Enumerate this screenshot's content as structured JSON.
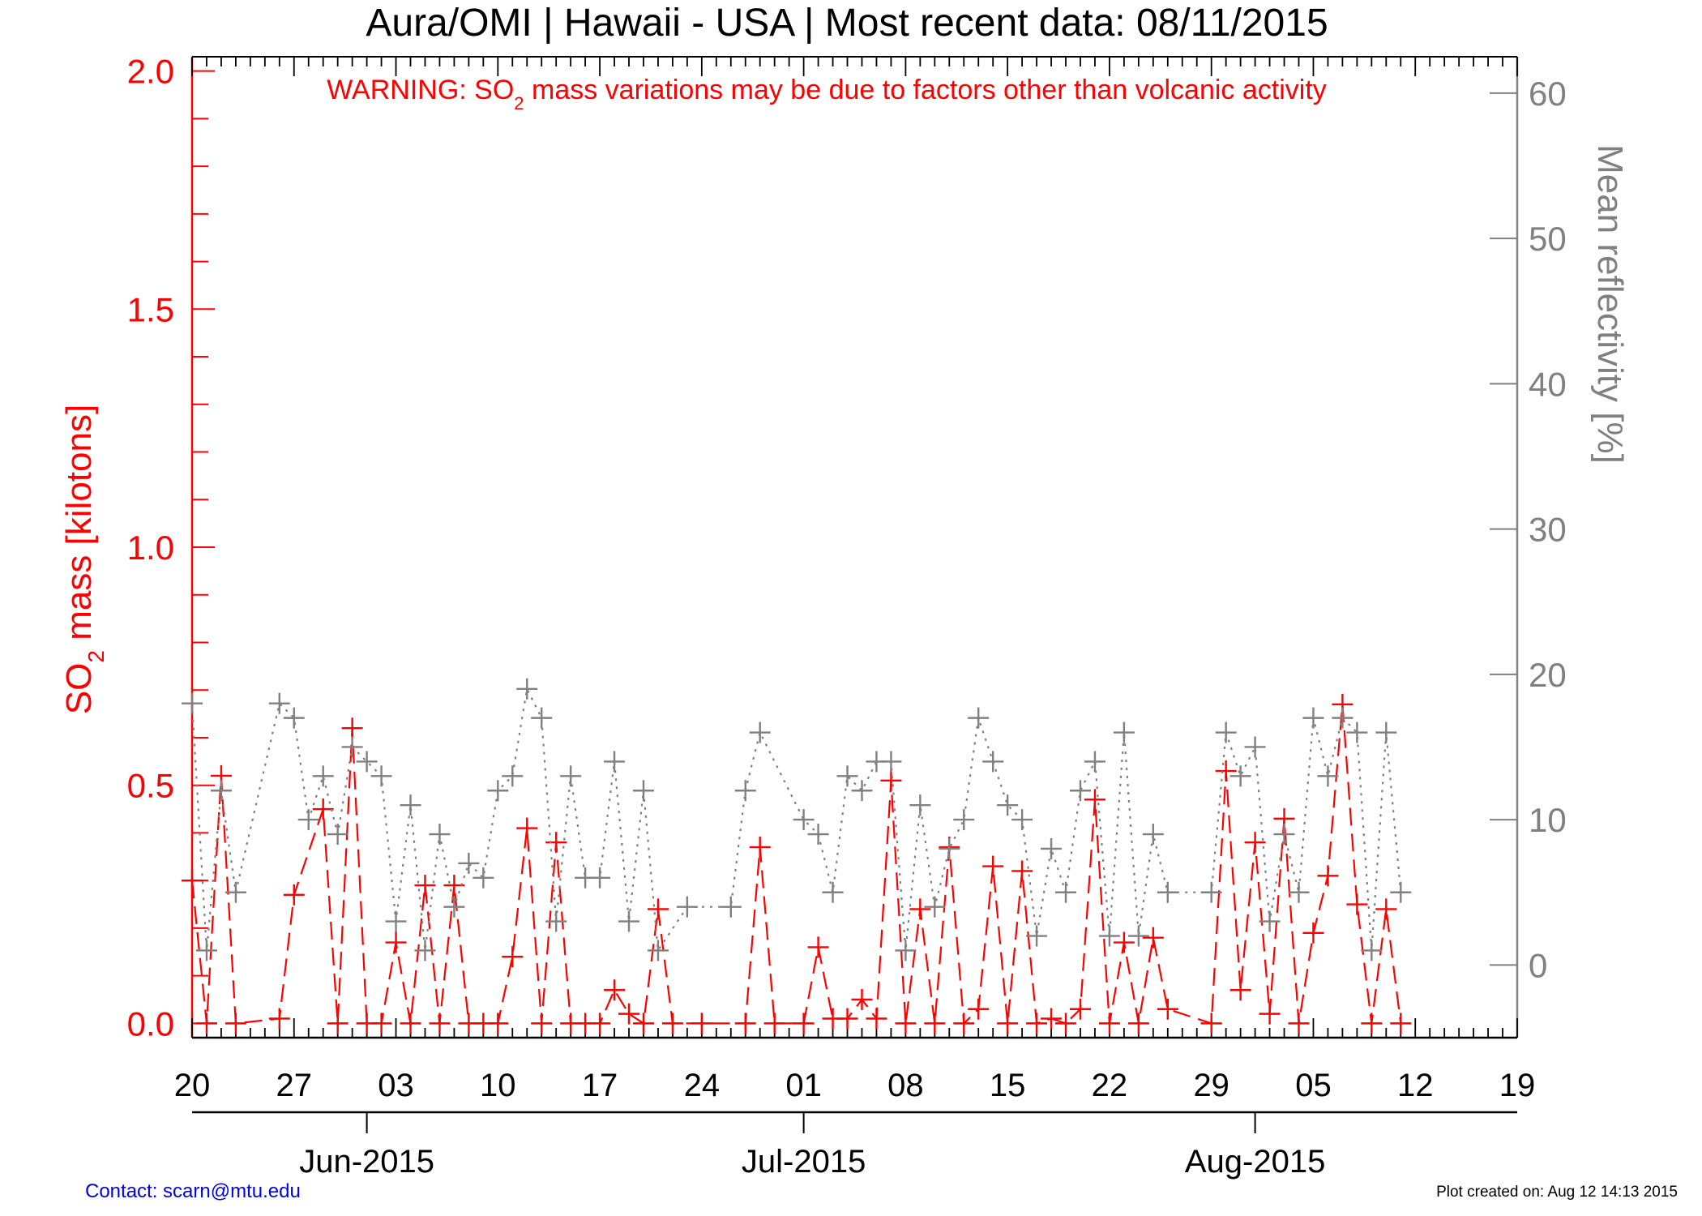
{
  "chart_data": {
    "type": "line",
    "title": "Aura/OMI | Hawaii - USA | Most recent data: 08/11/2015",
    "warning": {
      "prefix": "WARNING: SO",
      "subscript": "2",
      "suffix": " mass variations may be due to factors other than volcanic activity"
    },
    "ylabel_left": {
      "prefix": "SO",
      "subscript": "2",
      "suffix": " mass [kilotons]"
    },
    "ylabel_right": "Mean reflectivity [%]",
    "ylim_left": [
      -0.03,
      2.03
    ],
    "ylim_right": [
      -5.0,
      62.5
    ],
    "left_ticks": [
      "0.0",
      "0.5",
      "1.0",
      "1.5",
      "2.0"
    ],
    "right_ticks": [
      "0",
      "10",
      "20",
      "30",
      "40",
      "50",
      "60"
    ],
    "x_day_ticks": [
      {
        "date": "2015-05-20",
        "label": "20"
      },
      {
        "date": "2015-05-27",
        "label": "27"
      },
      {
        "date": "2015-06-03",
        "label": "03"
      },
      {
        "date": "2015-06-10",
        "label": "10"
      },
      {
        "date": "2015-06-17",
        "label": "17"
      },
      {
        "date": "2015-06-24",
        "label": "24"
      },
      {
        "date": "2015-07-01",
        "label": "01"
      },
      {
        "date": "2015-07-08",
        "label": "08"
      },
      {
        "date": "2015-07-15",
        "label": "15"
      },
      {
        "date": "2015-07-22",
        "label": "22"
      },
      {
        "date": "2015-07-29",
        "label": "29"
      },
      {
        "date": "2015-08-05",
        "label": "05"
      },
      {
        "date": "2015-08-12",
        "label": "12"
      },
      {
        "date": "2015-08-19",
        "label": "19"
      }
    ],
    "x_month_ticks": [
      {
        "date": "2015-06-01",
        "label": "Jun-2015"
      },
      {
        "date": "2015-07-01",
        "label": "Jul-2015"
      },
      {
        "date": "2015-08-01",
        "label": "Aug-2015"
      }
    ],
    "xlim": [
      "2015-05-20",
      "2015-08-19"
    ],
    "grid": false,
    "series": [
      {
        "color": "#ff0000",
        "axis": "left",
        "line_style": "dashed",
        "points": [
          [
            "2015-05-20",
            0.3
          ],
          [
            "2015-05-21",
            0.0
          ],
          [
            "2015-05-22",
            0.52
          ],
          [
            "2015-05-23",
            0.0
          ],
          [
            "2015-05-26",
            0.01
          ],
          [
            "2015-05-27",
            0.27
          ],
          [
            "2015-05-29",
            0.45
          ],
          [
            "2015-05-30",
            0.0
          ],
          [
            "2015-05-31",
            0.62
          ],
          [
            "2015-06-01",
            0.0
          ],
          [
            "2015-06-02",
            0.0
          ],
          [
            "2015-06-03",
            0.17
          ],
          [
            "2015-06-04",
            0.0
          ],
          [
            "2015-06-05",
            0.29
          ],
          [
            "2015-06-06",
            0.0
          ],
          [
            "2015-06-07",
            0.29
          ],
          [
            "2015-06-08",
            0.0
          ],
          [
            "2015-06-09",
            0.0
          ],
          [
            "2015-06-10",
            0.0
          ],
          [
            "2015-06-11",
            0.14
          ],
          [
            "2015-06-12",
            0.41
          ],
          [
            "2015-06-13",
            0.0
          ],
          [
            "2015-06-14",
            0.38
          ],
          [
            "2015-06-15",
            0.0
          ],
          [
            "2015-06-16",
            0.0
          ],
          [
            "2015-06-17",
            0.0
          ],
          [
            "2015-06-18",
            0.07
          ],
          [
            "2015-06-19",
            0.02
          ],
          [
            "2015-06-20",
            0.0
          ],
          [
            "2015-06-21",
            0.24
          ],
          [
            "2015-06-22",
            0.0
          ],
          [
            "2015-06-24",
            0.0
          ],
          [
            "2015-06-27",
            0.0
          ],
          [
            "2015-06-28",
            0.37
          ],
          [
            "2015-06-29",
            0.0
          ],
          [
            "2015-07-01",
            0.0
          ],
          [
            "2015-07-02",
            0.16
          ],
          [
            "2015-07-03",
            0.01
          ],
          [
            "2015-07-04",
            0.01
          ],
          [
            "2015-07-05",
            0.05
          ],
          [
            "2015-07-06",
            0.01
          ],
          [
            "2015-07-07",
            0.51
          ],
          [
            "2015-07-08",
            0.0
          ],
          [
            "2015-07-09",
            0.24
          ],
          [
            "2015-07-10",
            0.0
          ],
          [
            "2015-07-11",
            0.37
          ],
          [
            "2015-07-12",
            0.0
          ],
          [
            "2015-07-13",
            0.03
          ],
          [
            "2015-07-14",
            0.33
          ],
          [
            "2015-07-15",
            0.0
          ],
          [
            "2015-07-16",
            0.32
          ],
          [
            "2015-07-17",
            0.0
          ],
          [
            "2015-07-18",
            0.01
          ],
          [
            "2015-07-19",
            0.0
          ],
          [
            "2015-07-20",
            0.03
          ],
          [
            "2015-07-21",
            0.47
          ],
          [
            "2015-07-22",
            0.0
          ],
          [
            "2015-07-23",
            0.17
          ],
          [
            "2015-07-24",
            0.0
          ],
          [
            "2015-07-25",
            0.18
          ],
          [
            "2015-07-26",
            0.03
          ],
          [
            "2015-07-29",
            0.0
          ],
          [
            "2015-07-30",
            0.53
          ],
          [
            "2015-07-31",
            0.07
          ],
          [
            "2015-08-01",
            0.38
          ],
          [
            "2015-08-02",
            0.02
          ],
          [
            "2015-08-03",
            0.43
          ],
          [
            "2015-08-04",
            0.0
          ],
          [
            "2015-08-05",
            0.19
          ],
          [
            "2015-08-06",
            0.31
          ],
          [
            "2015-08-07",
            0.67
          ],
          [
            "2015-08-08",
            0.25
          ],
          [
            "2015-08-09",
            0.0
          ],
          [
            "2015-08-10",
            0.24
          ],
          [
            "2015-08-11",
            0.0
          ]
        ]
      },
      {
        "color": "#808080",
        "axis": "right",
        "line_style": "dotted",
        "points": [
          [
            "2015-05-20",
            18
          ],
          [
            "2015-05-21",
            1
          ],
          [
            "2015-05-22",
            12
          ],
          [
            "2015-05-23",
            5
          ],
          [
            "2015-05-26",
            18
          ],
          [
            "2015-05-27",
            17
          ],
          [
            "2015-05-28",
            10
          ],
          [
            "2015-05-29",
            13
          ],
          [
            "2015-05-30",
            9
          ],
          [
            "2015-05-31",
            15
          ],
          [
            "2015-06-01",
            14
          ],
          [
            "2015-06-02",
            13
          ],
          [
            "2015-06-03",
            3
          ],
          [
            "2015-06-04",
            11
          ],
          [
            "2015-06-05",
            1
          ],
          [
            "2015-06-06",
            9
          ],
          [
            "2015-06-07",
            4
          ],
          [
            "2015-06-08",
            7
          ],
          [
            "2015-06-09",
            6
          ],
          [
            "2015-06-10",
            12
          ],
          [
            "2015-06-11",
            13
          ],
          [
            "2015-06-12",
            19
          ],
          [
            "2015-06-13",
            17
          ],
          [
            "2015-06-14",
            3
          ],
          [
            "2015-06-15",
            13
          ],
          [
            "2015-06-16",
            6
          ],
          [
            "2015-06-17",
            6
          ],
          [
            "2015-06-18",
            14
          ],
          [
            "2015-06-19",
            3
          ],
          [
            "2015-06-20",
            12
          ],
          [
            "2015-06-21",
            1
          ],
          [
            "2015-06-23",
            4
          ],
          [
            "2015-06-26",
            4
          ],
          [
            "2015-06-27",
            12
          ],
          [
            "2015-06-28",
            16
          ],
          [
            "2015-07-01",
            10
          ],
          [
            "2015-07-02",
            9
          ],
          [
            "2015-07-03",
            5
          ],
          [
            "2015-07-04",
            13
          ],
          [
            "2015-07-05",
            12
          ],
          [
            "2015-07-06",
            14
          ],
          [
            "2015-07-07",
            14
          ],
          [
            "2015-07-08",
            1
          ],
          [
            "2015-07-09",
            11
          ],
          [
            "2015-07-10",
            4
          ],
          [
            "2015-07-11",
            8
          ],
          [
            "2015-07-12",
            10
          ],
          [
            "2015-07-13",
            17
          ],
          [
            "2015-07-14",
            14
          ],
          [
            "2015-07-15",
            11
          ],
          [
            "2015-07-16",
            10
          ],
          [
            "2015-07-17",
            2
          ],
          [
            "2015-07-18",
            8
          ],
          [
            "2015-07-19",
            5
          ],
          [
            "2015-07-20",
            12
          ],
          [
            "2015-07-21",
            14
          ],
          [
            "2015-07-22",
            2
          ],
          [
            "2015-07-23",
            16
          ],
          [
            "2015-07-24",
            2
          ],
          [
            "2015-07-25",
            9
          ],
          [
            "2015-07-26",
            5
          ],
          [
            "2015-07-29",
            5
          ],
          [
            "2015-07-30",
            16
          ],
          [
            "2015-07-31",
            13
          ],
          [
            "2015-08-01",
            15
          ],
          [
            "2015-08-02",
            3
          ],
          [
            "2015-08-03",
            9
          ],
          [
            "2015-08-04",
            5
          ],
          [
            "2015-08-05",
            17
          ],
          [
            "2015-08-06",
            13
          ],
          [
            "2015-08-07",
            17
          ],
          [
            "2015-08-08",
            16
          ],
          [
            "2015-08-09",
            1
          ],
          [
            "2015-08-10",
            16
          ],
          [
            "2015-08-11",
            5
          ]
        ]
      }
    ]
  },
  "footer": {
    "contact": "Contact: scarn@mtu.edu",
    "created": "Plot created on: Aug 12 14:13 2015"
  }
}
